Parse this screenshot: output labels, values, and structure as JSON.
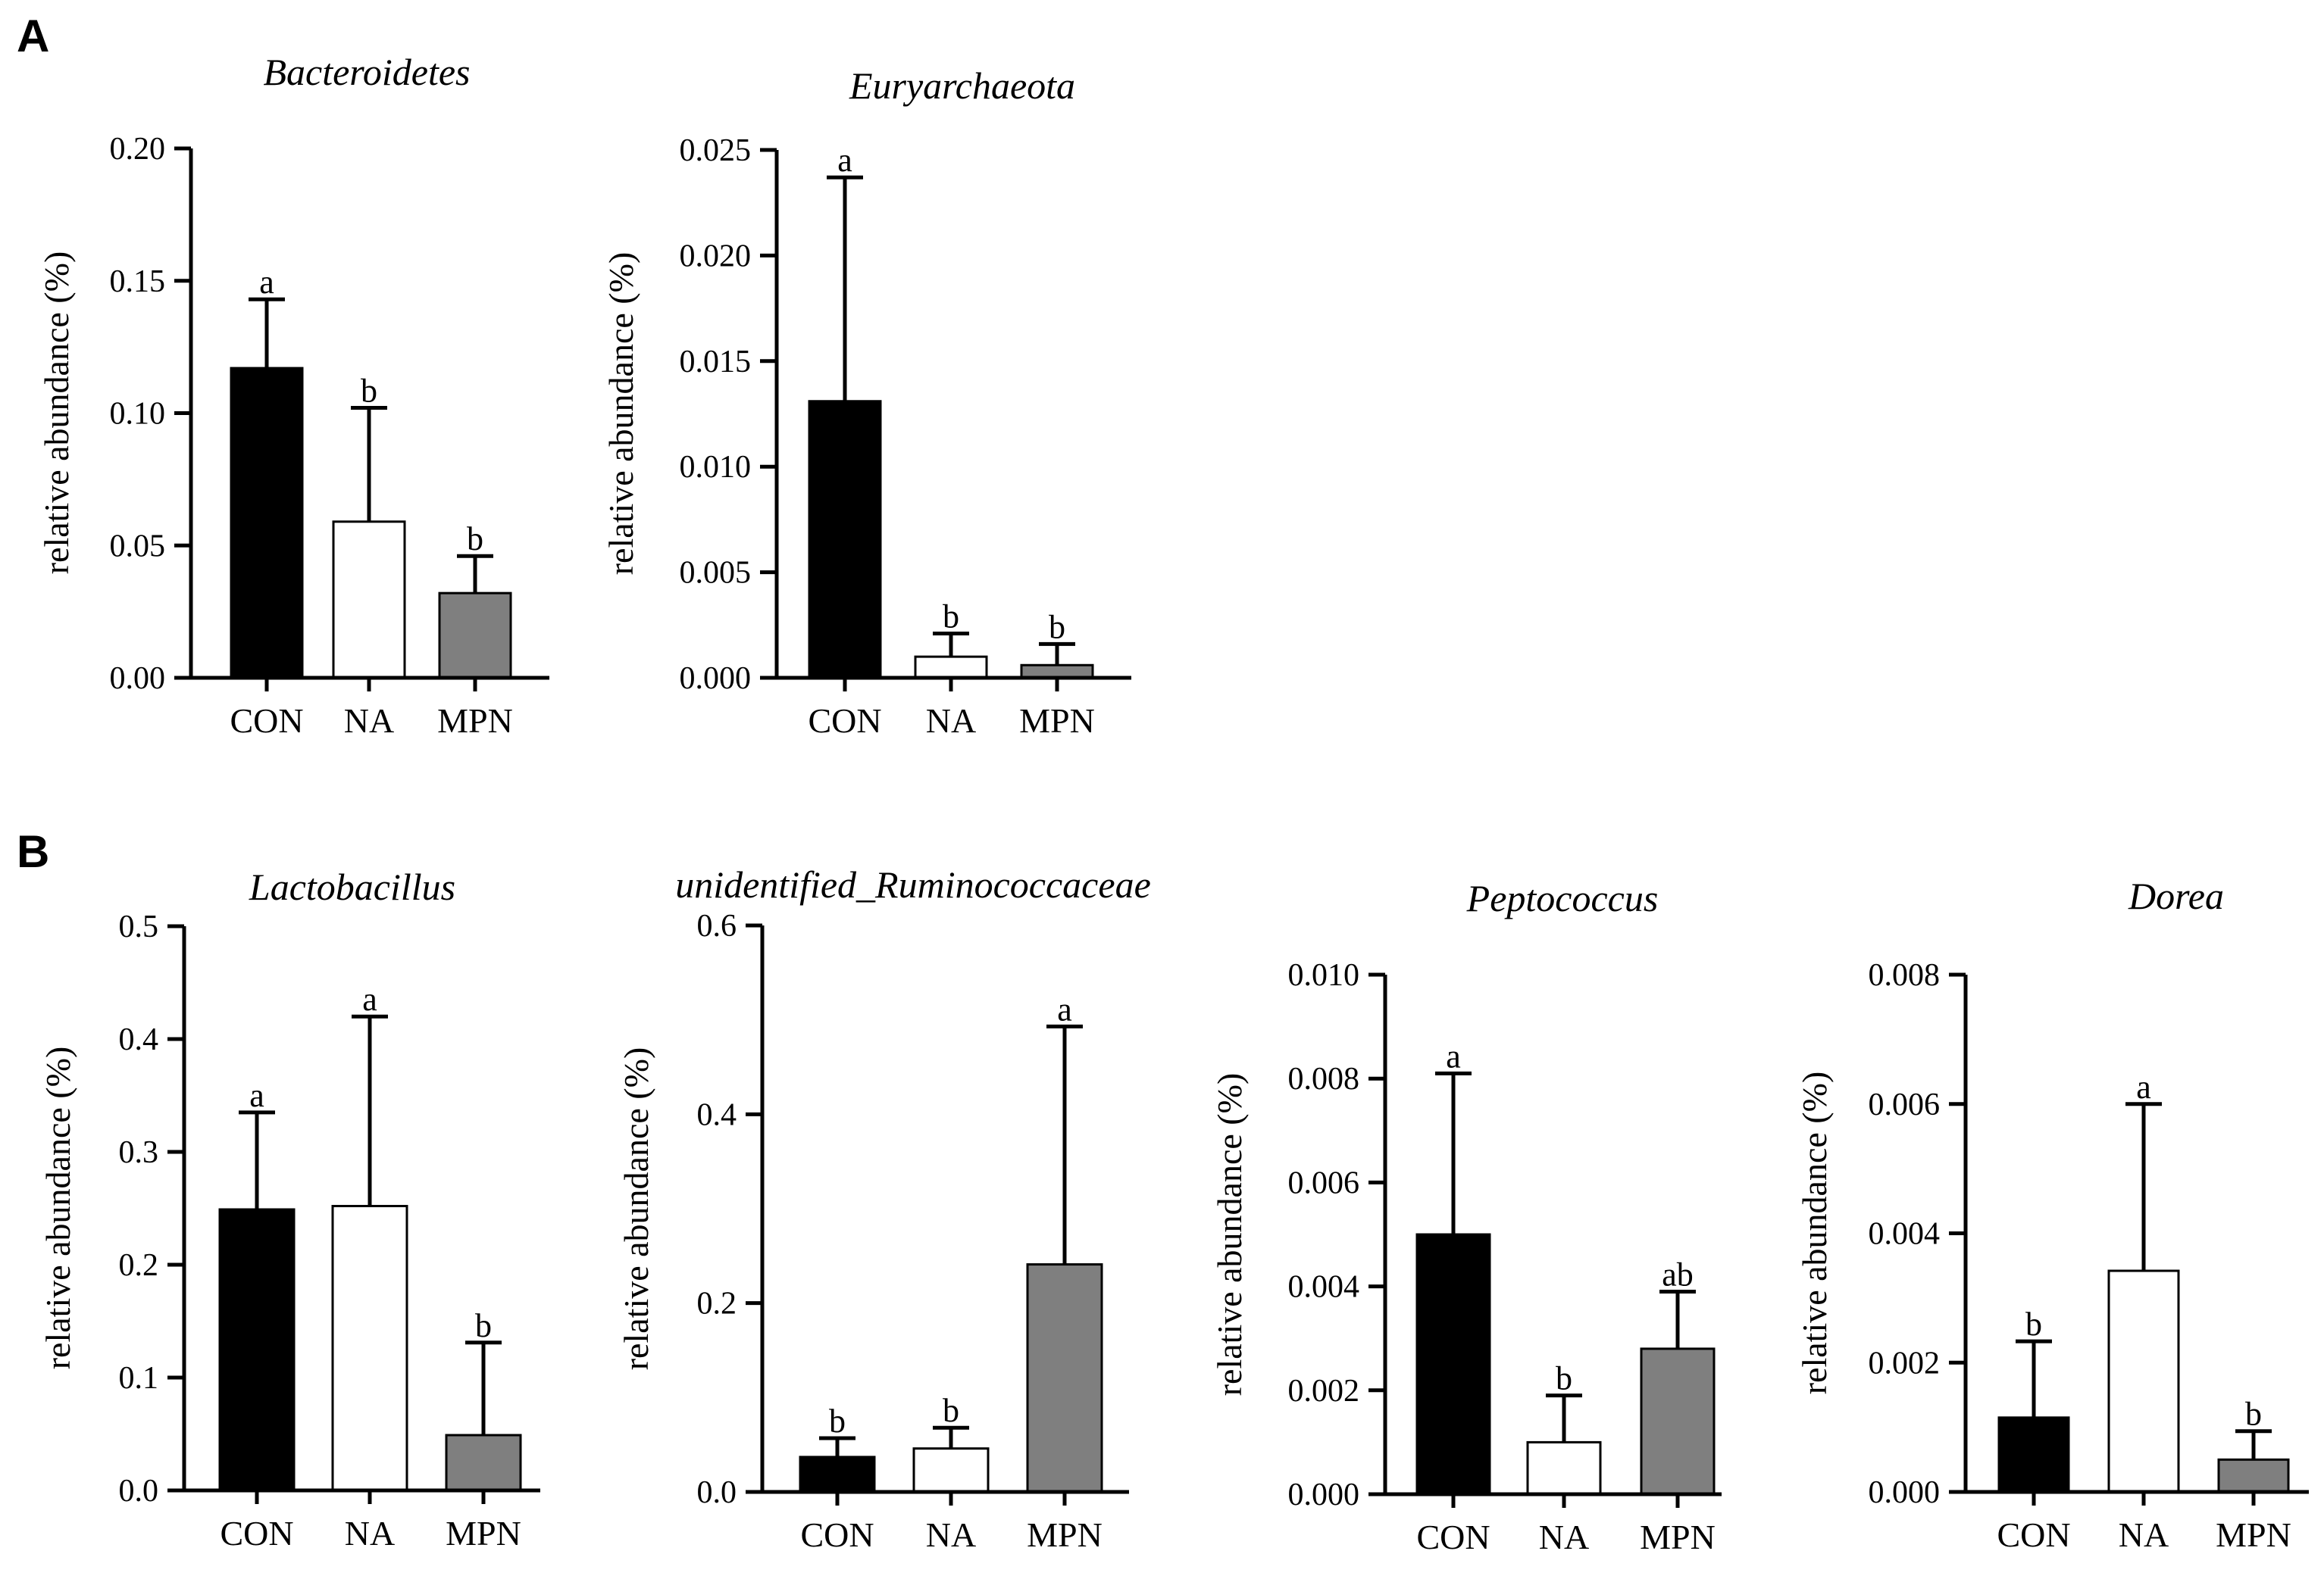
{
  "figure": {
    "panels": [
      {
        "label": "A"
      },
      {
        "label": "B"
      }
    ]
  },
  "chart_data": [
    {
      "type": "bar",
      "panel": "A",
      "title": "Bacteroidetes",
      "ylabel": "relative abundance (%)",
      "xlabel": "",
      "ylim": [
        0,
        0.2
      ],
      "yticks": [
        "0.00",
        "0.05",
        "0.10",
        "0.15",
        "0.20"
      ],
      "categories": [
        "CON",
        "NA",
        "MPN"
      ],
      "values": [
        0.117,
        0.059,
        0.032
      ],
      "errors": [
        0.026,
        0.043,
        0.014
      ],
      "significance": [
        "a",
        "b",
        "b"
      ],
      "colors": [
        "#000000",
        "#ffffff",
        "#7f7f7f"
      ]
    },
    {
      "type": "bar",
      "panel": "A",
      "title": "Euryarchaeota",
      "ylabel": "relative abundance (%)",
      "xlabel": "",
      "ylim": [
        0,
        0.025
      ],
      "yticks": [
        "0.000",
        "0.005",
        "0.010",
        "0.015",
        "0.020",
        "0.025"
      ],
      "categories": [
        "CON",
        "NA",
        "MPN"
      ],
      "values": [
        0.0131,
        0.001,
        0.0006
      ],
      "errors": [
        0.0106,
        0.0011,
        0.001
      ],
      "significance": [
        "a",
        "b",
        "b"
      ],
      "colors": [
        "#000000",
        "#ffffff",
        "#7f7f7f"
      ]
    },
    {
      "type": "bar",
      "panel": "B",
      "title": "Lactobacillus",
      "ylabel": "relative abundance (%)",
      "xlabel": "",
      "ylim": [
        0,
        0.5
      ],
      "yticks": [
        "0.0",
        "0.1",
        "0.2",
        "0.3",
        "0.4",
        "0.5"
      ],
      "categories": [
        "CON",
        "NA",
        "MPN"
      ],
      "values": [
        0.249,
        0.252,
        0.049
      ],
      "errors": [
        0.086,
        0.168,
        0.082
      ],
      "significance": [
        "a",
        "a",
        "b"
      ],
      "colors": [
        "#000000",
        "#ffffff",
        "#7f7f7f"
      ]
    },
    {
      "type": "bar",
      "panel": "B",
      "title": "unidentified_Ruminococcaceae",
      "ylabel": "relative abundance (%)",
      "xlabel": "",
      "ylim": [
        0,
        0.6
      ],
      "yticks": [
        "0.0",
        "0.2",
        "0.4",
        "0.6"
      ],
      "categories": [
        "CON",
        "NA",
        "MPN"
      ],
      "values": [
        0.037,
        0.046,
        0.241
      ],
      "errors": [
        0.02,
        0.022,
        0.252
      ],
      "significance": [
        "b",
        "b",
        "a"
      ],
      "colors": [
        "#000000",
        "#ffffff",
        "#7f7f7f"
      ]
    },
    {
      "type": "bar",
      "panel": "B",
      "title": "Peptococcus",
      "ylabel": "relative abundance (%)",
      "xlabel": "",
      "ylim": [
        0,
        0.01
      ],
      "yticks": [
        "0.000",
        "0.002",
        "0.004",
        "0.006",
        "0.008",
        "0.010"
      ],
      "categories": [
        "CON",
        "NA",
        "MPN"
      ],
      "values": [
        0.005,
        0.001,
        0.0028
      ],
      "errors": [
        0.0031,
        0.0009,
        0.0011
      ],
      "significance": [
        "a",
        "b",
        "ab"
      ],
      "colors": [
        "#000000",
        "#ffffff",
        "#7f7f7f"
      ]
    },
    {
      "type": "bar",
      "panel": "B",
      "title": "Dorea",
      "ylabel": "relative abundance (%)",
      "xlabel": "",
      "ylim": [
        0,
        0.008
      ],
      "yticks": [
        "0.000",
        "0.002",
        "0.004",
        "0.006",
        "0.008"
      ],
      "categories": [
        "CON",
        "NA",
        "MPN"
      ],
      "values": [
        0.00115,
        0.00342,
        0.0005
      ],
      "errors": [
        0.00118,
        0.00258,
        0.00044
      ],
      "significance": [
        "b",
        "a",
        "b"
      ],
      "colors": [
        "#000000",
        "#ffffff",
        "#7f7f7f"
      ]
    }
  ]
}
